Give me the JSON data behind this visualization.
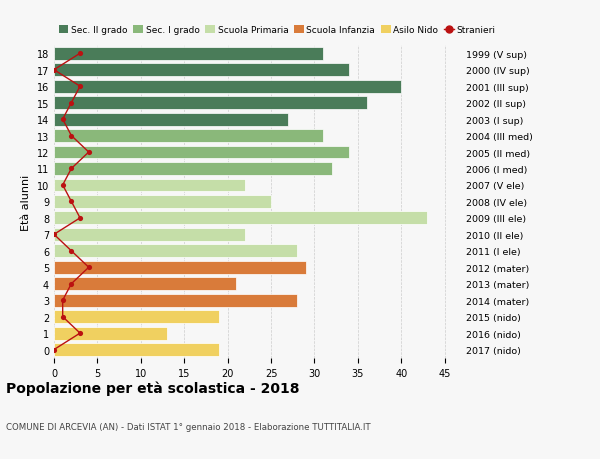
{
  "ages": [
    18,
    17,
    16,
    15,
    14,
    13,
    12,
    11,
    10,
    9,
    8,
    7,
    6,
    5,
    4,
    3,
    2,
    1,
    0
  ],
  "bar_values": [
    31,
    34,
    40,
    36,
    27,
    31,
    34,
    32,
    22,
    25,
    43,
    22,
    28,
    29,
    21,
    28,
    19,
    13,
    19
  ],
  "bar_colors": [
    "#4a7c59",
    "#4a7c59",
    "#4a7c59",
    "#4a7c59",
    "#4a7c59",
    "#8ab87a",
    "#8ab87a",
    "#8ab87a",
    "#c5dea8",
    "#c5dea8",
    "#c5dea8",
    "#c5dea8",
    "#c5dea8",
    "#d97b3a",
    "#d97b3a",
    "#d97b3a",
    "#f0d060",
    "#f0d060",
    "#f0d060"
  ],
  "stranieri_values": [
    3,
    0,
    3,
    2,
    1,
    2,
    4,
    2,
    1,
    2,
    3,
    0,
    2,
    4,
    2,
    1,
    1,
    3,
    0
  ],
  "right_labels": [
    "1999 (V sup)",
    "2000 (IV sup)",
    "2001 (III sup)",
    "2002 (II sup)",
    "2003 (I sup)",
    "2004 (III med)",
    "2005 (II med)",
    "2006 (I med)",
    "2007 (V ele)",
    "2008 (IV ele)",
    "2009 (III ele)",
    "2010 (II ele)",
    "2011 (I ele)",
    "2012 (mater)",
    "2013 (mater)",
    "2014 (mater)",
    "2015 (nido)",
    "2016 (nido)",
    "2017 (nido)"
  ],
  "ylabel_left": "Età alunni",
  "title": "Popolazione per età scolastica - 2018",
  "subtitle": "COMUNE DI ARCEVIA (AN) - Dati ISTAT 1° gennaio 2018 - Elaborazione TUTTITALIA.IT",
  "legend_labels": [
    "Sec. II grado",
    "Sec. I grado",
    "Scuola Primaria",
    "Scuola Infanzia",
    "Asilo Nido",
    "Stranieri"
  ],
  "legend_colors": [
    "#4a7c59",
    "#8ab87a",
    "#c5dea8",
    "#d97b3a",
    "#f0d060",
    "#bb1111"
  ],
  "xlim": [
    0,
    47
  ],
  "background_color": "#f7f7f7",
  "bar_edge_color": "white",
  "grid_color": "#cccccc",
  "stranieri_line_color": "#bb1111",
  "stranieri_dot_color": "#bb1111"
}
